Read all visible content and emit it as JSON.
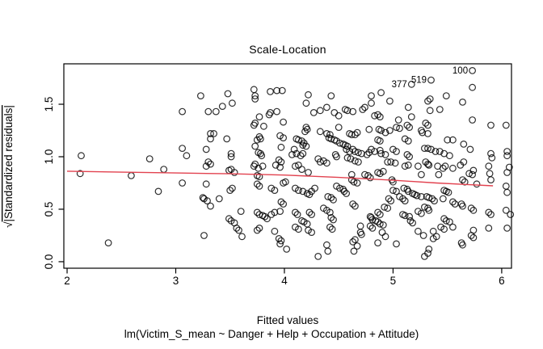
{
  "colors": {
    "smooth_line": "#e2424f",
    "points": "#000000",
    "axis": "#000000",
    "background": "#ffffff"
  },
  "chart_data": {
    "type": "scatter",
    "title": "Scale-Location",
    "xlabel": "Fitted values",
    "subtitle": "lm(Victim_S_mean ~ Danger + Help + Occupation + Attitude)",
    "ylabel": "√|Standardized residuals|",
    "ylabel_radical": "√",
    "ylabel_rest": "|Standardized residuals|",
    "x_ticks": [
      2,
      3,
      4,
      5,
      6
    ],
    "y_ticks": [
      "0.0",
      "0.5",
      "1.0",
      "1.5"
    ],
    "xlim": [
      1.97,
      6.09
    ],
    "ylim": [
      -0.062,
      1.885
    ],
    "grid": false,
    "legend": "none",
    "labeled_points": [
      {
        "label": "377",
        "x": 5.17,
        "y": 1.69
      },
      {
        "label": "519",
        "x": 5.35,
        "y": 1.73
      },
      {
        "label": "100",
        "x": 5.73,
        "y": 1.82
      }
    ],
    "smooth_line": [
      [
        2.0,
        0.862
      ],
      [
        2.5,
        0.853
      ],
      [
        3.0,
        0.845
      ],
      [
        3.5,
        0.838
      ],
      [
        4.0,
        0.825
      ],
      [
        4.5,
        0.803
      ],
      [
        5.0,
        0.776
      ],
      [
        5.4,
        0.75
      ],
      [
        5.7,
        0.734
      ],
      [
        5.92,
        0.723
      ]
    ],
    "points": [
      [
        2.13,
        1.01
      ],
      [
        2.76,
        0.98
      ],
      [
        2.12,
        0.84
      ],
      [
        2.59,
        0.82
      ],
      [
        2.89,
        0.88
      ],
      [
        2.84,
        0.67
      ],
      [
        2.38,
        0.18
      ],
      [
        3.06,
        1.43
      ],
      [
        3.23,
        1.58
      ],
      [
        3.3,
        1.43
      ],
      [
        3.37,
        1.43
      ],
      [
        3.43,
        1.48
      ],
      [
        3.32,
        1.22
      ],
      [
        3.35,
        1.22
      ],
      [
        3.32,
        1.17
      ],
      [
        3.28,
        1.07
      ],
      [
        3.48,
        1.6
      ],
      [
        3.52,
        1.51
      ],
      [
        3.47,
        1.17
      ],
      [
        3.51,
        1.03
      ],
      [
        3.51,
        1.0
      ],
      [
        3.3,
        0.95
      ],
      [
        3.32,
        0.93
      ],
      [
        3.06,
        1.08
      ],
      [
        3.1,
        1.01
      ],
      [
        3.72,
        1.64
      ],
      [
        3.73,
        1.58
      ],
      [
        3.73,
        1.55
      ],
      [
        3.87,
        1.62
      ],
      [
        3.93,
        1.63
      ],
      [
        3.98,
        1.63
      ],
      [
        3.77,
        1.38
      ],
      [
        3.73,
        1.32
      ],
      [
        3.72,
        1.3
      ],
      [
        3.81,
        1.29
      ],
      [
        3.87,
        1.42
      ],
      [
        3.86,
        1.4
      ],
      [
        3.93,
        1.43
      ],
      [
        3.99,
        1.33
      ],
      [
        3.77,
        1.19
      ],
      [
        3.78,
        1.17
      ],
      [
        3.75,
        1.16
      ],
      [
        3.73,
        1.1
      ],
      [
        3.76,
        1.04
      ],
      [
        3.78,
        1.03
      ],
      [
        3.79,
        1.01
      ],
      [
        3.96,
        1.2
      ],
      [
        3.99,
        1.18
      ],
      [
        3.97,
        1.09
      ],
      [
        3.95,
        0.97
      ],
      [
        3.97,
        0.95
      ],
      [
        3.73,
        0.93
      ],
      [
        4.22,
        1.59
      ],
      [
        4.2,
        1.51
      ],
      [
        4.33,
        1.44
      ],
      [
        4.27,
        1.42
      ],
      [
        4.39,
        1.47
      ],
      [
        4.43,
        1.58
      ],
      [
        4.46,
        1.42
      ],
      [
        4.5,
        1.39
      ],
      [
        4.56,
        1.45
      ],
      [
        4.58,
        1.44
      ],
      [
        4.63,
        1.43
      ],
      [
        4.74,
        1.47
      ],
      [
        4.72,
        1.45
      ],
      [
        4.8,
        1.51
      ],
      [
        4.8,
        1.58
      ],
      [
        4.89,
        1.61
      ],
      [
        4.97,
        1.53
      ],
      [
        4.83,
        1.39
      ],
      [
        4.86,
        1.4
      ],
      [
        4.88,
        1.38
      ],
      [
        4.2,
        1.28
      ],
      [
        4.21,
        1.26
      ],
      [
        4.19,
        1.24
      ],
      [
        4.33,
        1.24
      ],
      [
        4.39,
        1.22
      ],
      [
        4.42,
        1.21
      ],
      [
        4.5,
        1.28
      ],
      [
        4.6,
        1.22
      ],
      [
        4.62,
        1.21
      ],
      [
        4.65,
        1.21
      ],
      [
        4.67,
        1.23
      ],
      [
        4.78,
        1.26
      ],
      [
        4.87,
        1.26
      ],
      [
        4.89,
        1.25
      ],
      [
        4.93,
        1.23
      ],
      [
        4.97,
        1.25
      ],
      [
        4.86,
        1.16
      ],
      [
        4.88,
        1.15
      ],
      [
        4.11,
        1.17
      ],
      [
        4.13,
        1.16
      ],
      [
        4.16,
        1.15
      ],
      [
        4.18,
        1.13
      ],
      [
        4.17,
        1.11
      ],
      [
        4.2,
        1.1
      ],
      [
        4.41,
        1.18
      ],
      [
        4.43,
        1.17
      ],
      [
        4.46,
        1.16
      ],
      [
        4.48,
        1.15
      ],
      [
        4.51,
        1.13
      ],
      [
        4.54,
        1.12
      ],
      [
        4.56,
        1.11
      ],
      [
        4.58,
        1.1
      ],
      [
        4.57,
        1.07
      ],
      [
        4.6,
        1.05
      ],
      [
        4.63,
        1.07
      ],
      [
        4.65,
        1.05
      ],
      [
        4.68,
        1.04
      ],
      [
        4.71,
        1.03
      ],
      [
        4.09,
        1.07
      ],
      [
        4.11,
        1.03
      ],
      [
        4.07,
        1.02
      ],
      [
        4.15,
        1.01
      ],
      [
        4.17,
        1.03
      ],
      [
        4.31,
        0.98
      ],
      [
        4.33,
        0.95
      ],
      [
        4.36,
        0.96
      ],
      [
        4.39,
        0.94
      ],
      [
        4.47,
        1.02
      ],
      [
        4.48,
        1.0
      ],
      [
        4.58,
        0.99
      ],
      [
        4.61,
        0.98
      ],
      [
        4.65,
        0.96
      ],
      [
        4.68,
        0.95
      ],
      [
        4.76,
        1.02
      ],
      [
        4.78,
        1.04
      ],
      [
        4.8,
        1.07
      ],
      [
        4.83,
        1.05
      ],
      [
        4.88,
        1.06
      ],
      [
        4.89,
        1.03
      ],
      [
        4.93,
        1.02
      ],
      [
        4.95,
        0.95
      ],
      [
        4.98,
        0.95
      ],
      [
        5.02,
        0.94
      ],
      [
        5.0,
        1.07
      ],
      [
        5.03,
        1.05
      ],
      [
        5.05,
        1.35
      ],
      [
        5.03,
        1.28
      ],
      [
        5.06,
        1.27
      ],
      [
        5.73,
        1.82
      ],
      [
        5.35,
        1.73
      ],
      [
        5.17,
        1.69
      ],
      [
        5.73,
        1.66
      ],
      [
        5.49,
        1.58
      ],
      [
        5.32,
        1.53
      ],
      [
        5.34,
        1.55
      ],
      [
        5.64,
        1.52
      ],
      [
        5.14,
        1.47
      ],
      [
        5.34,
        1.44
      ],
      [
        5.43,
        1.45
      ],
      [
        5.17,
        1.38
      ],
      [
        5.73,
        1.35
      ],
      [
        5.3,
        1.32
      ],
      [
        5.32,
        1.3
      ],
      [
        5.13,
        1.3
      ],
      [
        5.15,
        1.28
      ],
      [
        5.26,
        1.25
      ],
      [
        5.27,
        1.23
      ],
      [
        5.32,
        1.22
      ],
      [
        5.9,
        1.3
      ],
      [
        5.5,
        1.16
      ],
      [
        5.55,
        1.16
      ],
      [
        5.11,
        1.17
      ],
      [
        5.14,
        1.15
      ],
      [
        5.65,
        1.12
      ],
      [
        5.71,
        1.07
      ],
      [
        5.29,
        1.08
      ],
      [
        5.32,
        1.08
      ],
      [
        5.35,
        1.07
      ],
      [
        5.39,
        1.05
      ],
      [
        5.43,
        1.05
      ],
      [
        5.47,
        1.03
      ],
      [
        5.52,
        1.01
      ],
      [
        5.13,
        1.02
      ],
      [
        5.15,
        1.0
      ],
      [
        5.9,
        1.03
      ],
      [
        5.91,
        0.99
      ],
      [
        5.65,
        0.95
      ],
      [
        5.3,
        0.95
      ],
      [
        5.32,
        0.93
      ],
      [
        3.28,
        0.91
      ],
      [
        3.49,
        0.87
      ],
      [
        3.51,
        0.88
      ],
      [
        3.54,
        0.85
      ],
      [
        3.72,
        0.91
      ],
      [
        3.76,
        0.89
      ],
      [
        3.8,
        0.91
      ],
      [
        3.92,
        0.92
      ],
      [
        3.96,
        0.9
      ],
      [
        3.75,
        0.82
      ],
      [
        3.77,
        0.81
      ],
      [
        3.06,
        0.75
      ],
      [
        3.28,
        0.74
      ],
      [
        3.52,
        0.7
      ],
      [
        3.5,
        0.68
      ],
      [
        3.75,
        0.74
      ],
      [
        3.77,
        0.72
      ],
      [
        3.88,
        0.7
      ],
      [
        3.91,
        0.68
      ],
      [
        3.99,
        0.75
      ],
      [
        4.01,
        0.76
      ],
      [
        3.26,
        0.6
      ],
      [
        3.29,
        0.58
      ],
      [
        3.25,
        0.61
      ],
      [
        3.4,
        0.6
      ],
      [
        3.32,
        0.53
      ],
      [
        3.6,
        0.48
      ],
      [
        3.49,
        0.41
      ],
      [
        3.51,
        0.39
      ],
      [
        3.54,
        0.37
      ],
      [
        3.75,
        0.47
      ],
      [
        3.77,
        0.45
      ],
      [
        3.8,
        0.44
      ],
      [
        3.82,
        0.43
      ],
      [
        3.84,
        0.41
      ],
      [
        3.88,
        0.45
      ],
      [
        3.91,
        0.47
      ],
      [
        3.97,
        0.57
      ],
      [
        3.99,
        0.55
      ],
      [
        3.96,
        0.48
      ],
      [
        3.56,
        0.32
      ],
      [
        3.58,
        0.3
      ],
      [
        3.61,
        0.24
      ],
      [
        3.26,
        0.25
      ],
      [
        3.77,
        0.32
      ],
      [
        3.75,
        0.3
      ],
      [
        3.91,
        0.29
      ],
      [
        3.95,
        0.22
      ],
      [
        3.97,
        0.2
      ],
      [
        3.96,
        0.17
      ],
      [
        4.02,
        0.12
      ],
      [
        4.1,
        0.91
      ],
      [
        4.13,
        0.92
      ],
      [
        4.16,
        0.88
      ],
      [
        4.22,
        0.85
      ],
      [
        4.1,
        0.7
      ],
      [
        4.13,
        0.68
      ],
      [
        4.17,
        0.67
      ],
      [
        4.21,
        0.65
      ],
      [
        4.23,
        0.64
      ],
      [
        4.25,
        0.67
      ],
      [
        4.28,
        0.7
      ],
      [
        4.1,
        0.47
      ],
      [
        4.12,
        0.45
      ],
      [
        4.16,
        0.39
      ],
      [
        4.18,
        0.38
      ],
      [
        4.21,
        0.36
      ],
      [
        4.1,
        0.33
      ],
      [
        4.13,
        0.31
      ],
      [
        4.22,
        0.3
      ],
      [
        4.25,
        0.28
      ],
      [
        4.23,
        0.47
      ],
      [
        4.25,
        0.45
      ],
      [
        4.36,
        0.51
      ],
      [
        4.39,
        0.49
      ],
      [
        4.42,
        0.47
      ],
      [
        4.43,
        0.42
      ],
      [
        4.45,
        0.4
      ],
      [
        4.42,
        0.33
      ],
      [
        4.44,
        0.31
      ],
      [
        4.39,
        0.16
      ],
      [
        4.4,
        0.1
      ],
      [
        4.31,
        0.05
      ],
      [
        4.4,
        0.62
      ],
      [
        4.43,
        0.61
      ],
      [
        4.45,
        0.59
      ],
      [
        4.48,
        0.72
      ],
      [
        4.51,
        0.7
      ],
      [
        4.54,
        0.69
      ],
      [
        4.55,
        0.67
      ],
      [
        4.57,
        0.65
      ],
      [
        4.62,
        0.78
      ],
      [
        4.64,
        0.76
      ],
      [
        4.67,
        0.75
      ],
      [
        4.62,
        0.83
      ],
      [
        4.63,
        0.55
      ],
      [
        4.65,
        0.53
      ],
      [
        4.63,
        0.19
      ],
      [
        4.65,
        0.21
      ],
      [
        4.67,
        0.15
      ],
      [
        4.64,
        0.1
      ],
      [
        4.7,
        0.28
      ],
      [
        4.71,
        0.26
      ],
      [
        4.7,
        0.34
      ],
      [
        4.79,
        0.43
      ],
      [
        4.8,
        0.42
      ],
      [
        4.81,
        0.4
      ],
      [
        4.84,
        0.39
      ],
      [
        4.86,
        0.38
      ],
      [
        4.88,
        0.36
      ],
      [
        4.91,
        0.35
      ],
      [
        4.79,
        0.34
      ],
      [
        4.81,
        0.32
      ],
      [
        4.86,
        0.47
      ],
      [
        4.88,
        0.45
      ],
      [
        4.92,
        0.52
      ],
      [
        4.95,
        0.51
      ],
      [
        4.96,
        0.6
      ],
      [
        4.98,
        0.58
      ],
      [
        4.9,
        0.28
      ],
      [
        4.93,
        0.24
      ],
      [
        4.86,
        0.18
      ],
      [
        5.03,
        0.17
      ],
      [
        4.74,
        0.83
      ],
      [
        4.77,
        0.82
      ],
      [
        4.79,
        0.8
      ],
      [
        4.86,
        0.85
      ],
      [
        4.88,
        0.84
      ],
      [
        4.91,
        0.86
      ],
      [
        4.99,
        0.78
      ],
      [
        5.0,
        0.76
      ],
      [
        5.0,
        0.68
      ],
      [
        5.03,
        0.67
      ],
      [
        5.06,
        0.62
      ],
      [
        5.11,
        0.91
      ],
      [
        5.14,
        0.92
      ],
      [
        5.23,
        0.91
      ],
      [
        5.26,
        0.83
      ],
      [
        5.33,
        0.92
      ],
      [
        5.41,
        0.91
      ],
      [
        5.42,
        0.83
      ],
      [
        5.46,
        0.89
      ],
      [
        5.48,
        0.91
      ],
      [
        5.55,
        0.89
      ],
      [
        5.62,
        0.92
      ],
      [
        5.7,
        0.84
      ],
      [
        5.73,
        0.83
      ],
      [
        5.74,
        0.87
      ],
      [
        5.88,
        0.91
      ],
      [
        5.89,
        0.84
      ],
      [
        5.9,
        0.78
      ],
      [
        5.77,
        0.74
      ],
      [
        5.64,
        0.78
      ],
      [
        5.66,
        0.76
      ],
      [
        5.1,
        0.7
      ],
      [
        5.13,
        0.69
      ],
      [
        5.14,
        0.67
      ],
      [
        5.18,
        0.65
      ],
      [
        5.2,
        0.64
      ],
      [
        5.22,
        0.63
      ],
      [
        5.26,
        0.62
      ],
      [
        5.09,
        0.6
      ],
      [
        5.11,
        0.58
      ],
      [
        5.31,
        0.62
      ],
      [
        5.33,
        0.61
      ],
      [
        5.36,
        0.6
      ],
      [
        5.38,
        0.58
      ],
      [
        5.47,
        0.68
      ],
      [
        5.49,
        0.67
      ],
      [
        5.51,
        0.66
      ],
      [
        5.46,
        0.6
      ],
      [
        5.55,
        0.57
      ],
      [
        5.57,
        0.55
      ],
      [
        5.63,
        0.55
      ],
      [
        5.64,
        0.53
      ],
      [
        5.72,
        0.51
      ],
      [
        5.74,
        0.49
      ],
      [
        5.88,
        0.47
      ],
      [
        5.9,
        0.45
      ],
      [
        5.29,
        0.52
      ],
      [
        5.32,
        0.51
      ],
      [
        5.33,
        0.49
      ],
      [
        5.23,
        0.48
      ],
      [
        5.26,
        0.46
      ],
      [
        5.09,
        0.45
      ],
      [
        5.11,
        0.44
      ],
      [
        5.15,
        0.43
      ],
      [
        5.16,
        0.39
      ],
      [
        5.18,
        0.37
      ],
      [
        5.47,
        0.41
      ],
      [
        5.49,
        0.39
      ],
      [
        5.52,
        0.38
      ],
      [
        5.44,
        0.33
      ],
      [
        5.47,
        0.31
      ],
      [
        5.55,
        0.33
      ],
      [
        5.74,
        0.3
      ],
      [
        5.88,
        0.32
      ],
      [
        5.28,
        0.25
      ],
      [
        5.37,
        0.22
      ],
      [
        5.4,
        0.24
      ],
      [
        5.63,
        0.18
      ],
      [
        5.72,
        0.25
      ],
      [
        5.74,
        0.23
      ],
      [
        5.33,
        0.12
      ],
      [
        5.32,
        0.08
      ],
      [
        5.29,
        0.05
      ],
      [
        5.64,
        0.16
      ],
      [
        5.23,
        0.29
      ],
      [
        5.37,
        0.29
      ],
      [
        6.04,
        1.3
      ],
      [
        6.05,
        1.05
      ],
      [
        6.05,
        1.01
      ],
      [
        6.07,
        0.9
      ],
      [
        6.05,
        0.85
      ],
      [
        6.04,
        0.72
      ],
      [
        6.05,
        0.66
      ],
      [
        6.04,
        0.49
      ],
      [
        6.08,
        0.45
      ],
      [
        6.05,
        0.32
      ]
    ]
  }
}
